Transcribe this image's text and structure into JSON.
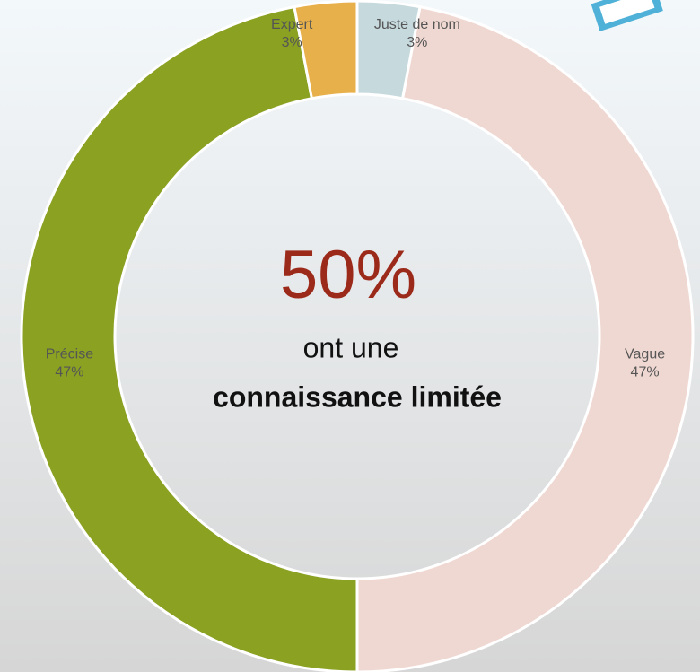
{
  "chart_data": {
    "type": "donut",
    "categories": [
      "Juste de nom",
      "Vague",
      "Précise",
      "Expert"
    ],
    "values": [
      3,
      47,
      47,
      3
    ],
    "value_labels": [
      "3%",
      "47%",
      "47%",
      "3%"
    ],
    "colors": [
      "#c6d9dd",
      "#f0d8d2",
      "#8aa122",
      "#e8b04b"
    ],
    "annotations": {
      "headline": "50%",
      "line1": "ont une",
      "line2": "connaissance limitée"
    }
  }
}
